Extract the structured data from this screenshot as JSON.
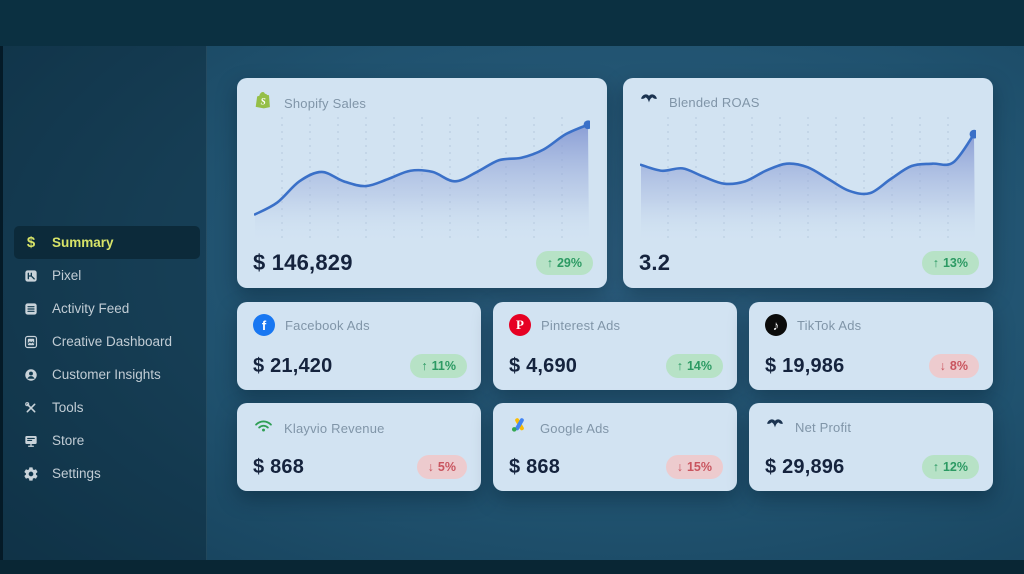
{
  "sidebar": {
    "items": [
      {
        "label": "Summary",
        "icon": "dollar-icon",
        "active": true
      },
      {
        "label": "Pixel",
        "icon": "pixel-icon",
        "active": false
      },
      {
        "label": "Activity Feed",
        "icon": "list-icon",
        "active": false
      },
      {
        "label": "Creative Dashboard",
        "icon": "image-icon",
        "active": false
      },
      {
        "label": "Customer Insights",
        "icon": "person-icon",
        "active": false
      },
      {
        "label": "Tools",
        "icon": "tools-icon",
        "active": false
      },
      {
        "label": "Store",
        "icon": "monitor-icon",
        "active": false
      },
      {
        "label": "Settings",
        "icon": "gear-icon",
        "active": false
      }
    ],
    "active_text_color": "#d8e468"
  },
  "cards": {
    "shopify": {
      "title": "Shopify Sales",
      "icon": "shopify-icon",
      "value": "$ 146,829",
      "badge": {
        "arrow": "↑",
        "pct": "29%",
        "direction": "up"
      }
    },
    "roas": {
      "title": "Blended ROAS",
      "icon": "whale-tail-icon",
      "value": "3.2",
      "badge": {
        "arrow": "↑",
        "pct": "13%",
        "direction": "up"
      }
    },
    "facebook": {
      "title": "Facebook Ads",
      "icon": "facebook-icon",
      "value": "$ 21,420",
      "badge": {
        "arrow": "↑",
        "pct": "11%",
        "direction": "up"
      }
    },
    "pinterest": {
      "title": "Pinterest Ads",
      "icon": "pinterest-icon",
      "value": "$ 4,690",
      "badge": {
        "arrow": "↑",
        "pct": "14%",
        "direction": "up"
      }
    },
    "tiktok": {
      "title": "TikTok Ads",
      "icon": "tiktok-icon",
      "value": "$ 19,986",
      "badge": {
        "arrow": "↓",
        "pct": "8%",
        "direction": "down"
      }
    },
    "klayvio": {
      "title": "Klayvio Revenue",
      "icon": "wifi-icon",
      "value": "$ 868",
      "badge": {
        "arrow": "↓",
        "pct": "5%",
        "direction": "down"
      }
    },
    "google": {
      "title": "Google Ads",
      "icon": "google-ads-icon",
      "value": "$ 868",
      "badge": {
        "arrow": "↓",
        "pct": "15%",
        "direction": "down"
      }
    },
    "netprofit": {
      "title": "Net Profit",
      "icon": "whale-tail-icon",
      "value": "$ 29,896",
      "badge": {
        "arrow": "↑",
        "pct": "12%",
        "direction": "up"
      }
    }
  },
  "chart_data": [
    {
      "id": "shopify-sales-sparkline",
      "type": "line",
      "title": "Shopify Sales",
      "current_value": "$ 146,829",
      "change": "+29%",
      "xlabel": "",
      "ylabel": "",
      "values_relative_0_100": [
        20,
        30,
        48,
        56,
        48,
        44,
        50,
        57,
        56,
        48,
        56,
        66,
        68,
        75,
        88,
        96
      ],
      "line_color": "#3a70c8",
      "area_fill": "blue-gradient",
      "gridlines": "vertical-dashed",
      "gridline_count": 11,
      "end_dot": true,
      "legend": "none"
    },
    {
      "id": "blended-roas-sparkline",
      "type": "line",
      "title": "Blended ROAS",
      "current_value": "3.2",
      "change": "+13%",
      "xlabel": "",
      "ylabel": "",
      "values_relative_0_100": [
        62,
        57,
        59,
        52,
        46,
        48,
        57,
        63,
        60,
        50,
        40,
        38,
        50,
        61,
        63,
        64,
        88
      ],
      "line_color": "#3a70c8",
      "area_fill": "blue-gradient",
      "gridlines": "vertical-dashed",
      "gridline_count": 11,
      "end_dot": true,
      "legend": "none"
    }
  ],
  "colors": {
    "card_bg": "#d2e3f2",
    "card_title_text": "#8095a8",
    "value_text": "#15233d",
    "badge_up_bg": "#b7e2c6",
    "badge_up_text": "#2c9a63",
    "badge_down_bg": "#edcbce",
    "badge_down_text": "#c9555f",
    "chart_line": "#3a70c8",
    "sidebar_active_text": "#d8e468",
    "facebook_blue": "#1877f2",
    "pinterest_red": "#e60023",
    "tiktok_black": "#0b0b0b",
    "shopify_green": "#95bf47",
    "klaviyo_green": "#2f9e55",
    "google_yellow": "#fbbc04",
    "google_blue": "#4285f4",
    "google_green": "#34a853"
  }
}
